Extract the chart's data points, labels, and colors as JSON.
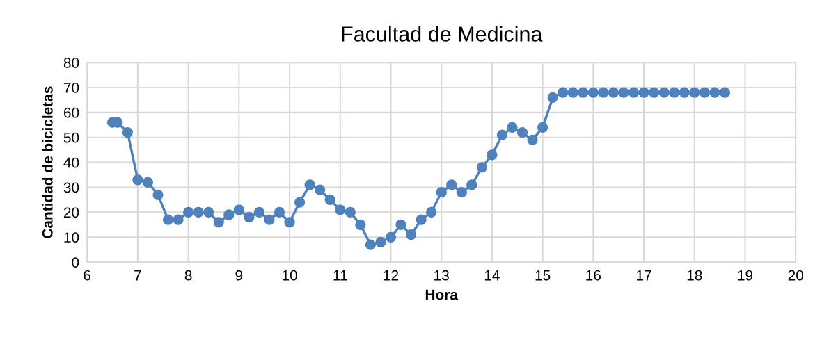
{
  "chart_data": {
    "type": "line",
    "title": "Facultad de Medicina",
    "xlabel": "Hora",
    "ylabel": "Cantidad de bicicletas",
    "x": [
      6.5,
      6.6,
      6.8,
      7.0,
      7.2,
      7.4,
      7.6,
      7.8,
      8.0,
      8.2,
      8.4,
      8.6,
      8.8,
      9.0,
      9.2,
      9.4,
      9.6,
      9.8,
      10.0,
      10.2,
      10.4,
      10.6,
      10.8,
      11.0,
      11.2,
      11.4,
      11.6,
      11.8,
      12.0,
      12.2,
      12.4,
      12.6,
      12.8,
      13.0,
      13.2,
      13.4,
      13.6,
      13.8,
      14.0,
      14.2,
      14.4,
      14.6,
      14.8,
      15.0,
      15.2,
      15.4,
      15.6,
      15.8,
      16.0,
      16.2,
      16.4,
      16.6,
      16.8,
      17.0,
      17.2,
      17.4,
      17.6,
      17.8,
      18.0,
      18.2,
      18.4,
      18.6
    ],
    "series": [
      {
        "color": "#4f81bd",
        "values": [
          56,
          56,
          52,
          33,
          32,
          27,
          17,
          17,
          20,
          20,
          20,
          16,
          19,
          21,
          18,
          20,
          17,
          20,
          16,
          24,
          31,
          29,
          25,
          21,
          20,
          15,
          7,
          8,
          10,
          15,
          11,
          17,
          20,
          28,
          31,
          28,
          31,
          38,
          43,
          51,
          54,
          52,
          49,
          54,
          66,
          68,
          68,
          68,
          68,
          68,
          68,
          68,
          68,
          68,
          68,
          68,
          68,
          68,
          68,
          68,
          68,
          68
        ]
      }
    ],
    "xlim": [
      6,
      20
    ],
    "xticks": [
      6,
      7,
      8,
      9,
      10,
      11,
      12,
      13,
      14,
      15,
      16,
      17,
      18,
      19,
      20
    ],
    "ylim": [
      0,
      80
    ],
    "yticks": [
      0,
      10,
      20,
      30,
      40,
      50,
      60,
      70,
      80
    ],
    "grid": true,
    "marker": "circle",
    "line_style": "solid"
  }
}
